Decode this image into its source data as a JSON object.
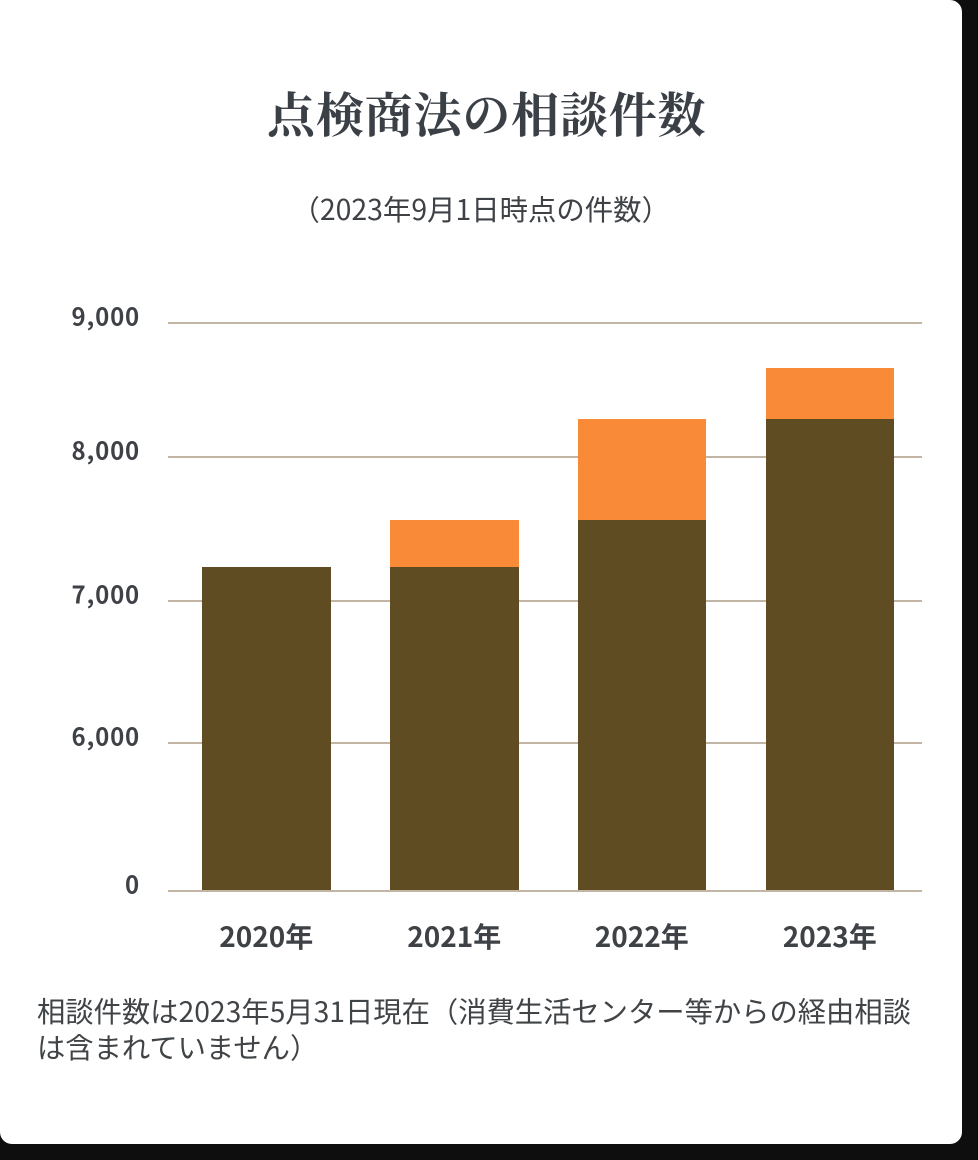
{
  "title": "点検商法の相談件数",
  "subtitle": "（2023年9月1日時点の件数）",
  "note": {
    "line1": "相談件数は2023年5月31日現在（消費生活センター等からの経由相談",
    "line2": "は含まれていません）"
  },
  "colors": {
    "card_background": "#ffffff",
    "outside_background": "#0e0e0e",
    "gridline": "#c3b5a3",
    "bar_dark_brown": "#5f4c23",
    "bar_orange": "#f98a38",
    "text": "#3e4247"
  },
  "chart_data": {
    "type": "bar",
    "stacked": true,
    "title": "点検商法の相談件数",
    "subtitle": "（2023年9月1日時点の件数）",
    "xlabel": "",
    "ylabel": "",
    "categories": [
      "2020年",
      "2021年",
      "2022年",
      "2023年"
    ],
    "series": [
      {
        "name": "base (dark brown)",
        "color": "#5f4c23",
        "values": [
          7236,
          7236,
          7563,
          8279
        ]
      },
      {
        "name": "increase (orange)",
        "color": "#f98a38",
        "values": [
          0,
          327,
          716,
          386
        ]
      }
    ],
    "totals": [
      7236,
      7563,
      8279,
      8665
    ],
    "y_ticks": [
      {
        "value": 9000,
        "label": "9,000"
      },
      {
        "value": 8000,
        "label": "8,000"
      },
      {
        "value": 7000,
        "label": "7,000"
      },
      {
        "value": 6000,
        "label": "6,000"
      },
      {
        "value": 0,
        "label": "0"
      }
    ],
    "ylim": [
      0,
      9000
    ],
    "axis_break": "y axis compressed between 0 and 6,000",
    "grid": true,
    "legend": false,
    "footnote": "相談件数は2023年5月31日現在（消費生活センター等からの経由相談は含まれていません）"
  }
}
